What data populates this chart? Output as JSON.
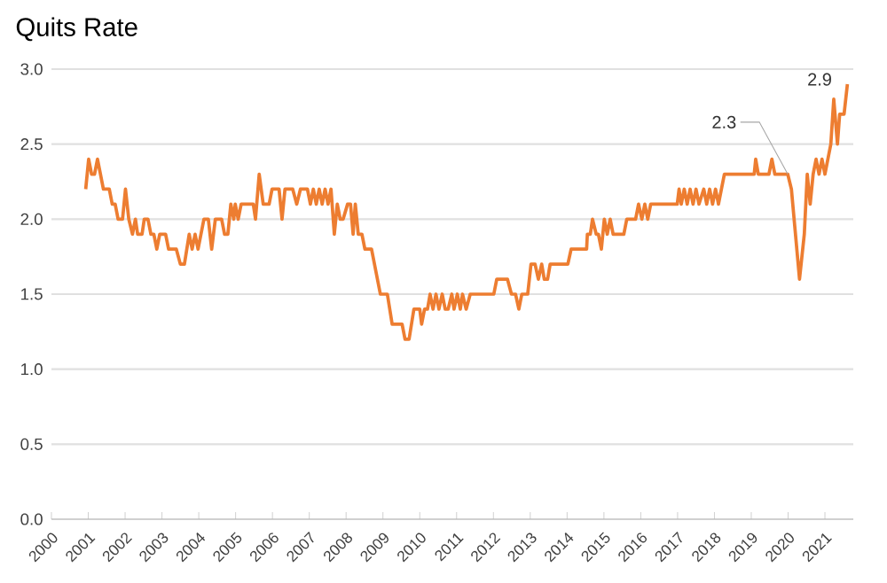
{
  "chart_data": {
    "type": "line",
    "title": "Quits Rate",
    "x": [
      2000.93,
      2001.01,
      2001.09,
      2001.17,
      2001.25,
      2001.41,
      2001.57,
      2001.65,
      2001.73,
      2001.81,
      2001.93,
      2002.01,
      2002.1,
      2002.2,
      2002.28,
      2002.34,
      2002.46,
      2002.52,
      2002.62,
      2002.7,
      2002.78,
      2002.86,
      2002.94,
      2003.1,
      2003.18,
      2003.39,
      2003.5,
      2003.61,
      2003.74,
      2003.82,
      2003.9,
      2003.98,
      2004.14,
      2004.26,
      2004.35,
      2004.45,
      2004.62,
      2004.7,
      2004.79,
      2004.87,
      2004.95,
      2004.99,
      2005.07,
      2005.15,
      2005.48,
      2005.54,
      2005.64,
      2005.75,
      2005.91,
      2005.99,
      2006.18,
      2006.26,
      2006.34,
      2006.55,
      2006.66,
      2006.76,
      2006.79,
      2006.95,
      2007.03,
      2007.11,
      2007.19,
      2007.27,
      2007.35,
      2007.43,
      2007.51,
      2007.59,
      2007.68,
      2007.76,
      2007.84,
      2007.92,
      2008.04,
      2008.12,
      2008.19,
      2008.25,
      2008.33,
      2008.43,
      2008.51,
      2008.69,
      2008.93,
      2009.12,
      2009.25,
      2009.52,
      2009.6,
      2009.71,
      2009.84,
      2010.0,
      2010.05,
      2010.13,
      2010.21,
      2010.28,
      2010.36,
      2010.44,
      2010.52,
      2010.61,
      2010.69,
      2010.77,
      2010.87,
      2010.93,
      2011.02,
      2011.1,
      2011.16,
      2011.26,
      2011.37,
      2012.01,
      2012.09,
      2012.38,
      2012.49,
      2012.6,
      2012.69,
      2012.77,
      2012.93,
      2013.02,
      2013.13,
      2013.22,
      2013.31,
      2013.38,
      2013.47,
      2013.54,
      2014.02,
      2014.11,
      2014.53,
      2014.55,
      2014.63,
      2014.69,
      2014.79,
      2014.85,
      2014.93,
      2015.01,
      2015.09,
      2015.17,
      2015.25,
      2015.54,
      2015.62,
      2015.86,
      2015.94,
      2016.03,
      2016.11,
      2016.19,
      2016.27,
      2016.99,
      2017.04,
      2017.1,
      2017.18,
      2017.26,
      2017.34,
      2017.42,
      2017.5,
      2017.58,
      2017.71,
      2017.79,
      2017.87,
      2017.95,
      2018.03,
      2018.11,
      2018.19,
      2018.27,
      2019.08,
      2019.12,
      2019.19,
      2019.48,
      2019.56,
      2019.64,
      2019.99,
      2020.09,
      2020.2,
      2020.31,
      2020.44,
      2020.52,
      2020.6,
      2020.68,
      2020.76,
      2020.84,
      2020.92,
      2021.0,
      2021.08,
      2021.16,
      2021.24,
      2021.34,
      2021.4,
      2021.52,
      2021.61
    ],
    "values": [
      2.2,
      2.4,
      2.3,
      2.3,
      2.4,
      2.2,
      2.2,
      2.1,
      2.1,
      2.0,
      2.0,
      2.2,
      2.0,
      1.9,
      2.0,
      1.9,
      1.9,
      2.0,
      2.0,
      1.9,
      1.9,
      1.8,
      1.9,
      1.9,
      1.8,
      1.8,
      1.7,
      1.7,
      1.9,
      1.8,
      1.9,
      1.8,
      2.0,
      2.0,
      1.8,
      2.0,
      2.0,
      1.9,
      1.9,
      2.1,
      2.0,
      2.1,
      2.0,
      2.1,
      2.1,
      2.0,
      2.3,
      2.1,
      2.1,
      2.2,
      2.2,
      2.0,
      2.2,
      2.2,
      2.1,
      2.2,
      2.2,
      2.2,
      2.1,
      2.2,
      2.1,
      2.2,
      2.1,
      2.2,
      2.1,
      2.2,
      1.9,
      2.1,
      2.0,
      2.0,
      2.1,
      2.1,
      1.9,
      2.1,
      1.9,
      1.9,
      1.8,
      1.8,
      1.5,
      1.5,
      1.3,
      1.3,
      1.2,
      1.2,
      1.4,
      1.4,
      1.3,
      1.4,
      1.4,
      1.5,
      1.4,
      1.5,
      1.4,
      1.5,
      1.4,
      1.4,
      1.5,
      1.4,
      1.5,
      1.4,
      1.5,
      1.4,
      1.5,
      1.5,
      1.6,
      1.6,
      1.5,
      1.5,
      1.4,
      1.5,
      1.5,
      1.7,
      1.7,
      1.6,
      1.7,
      1.6,
      1.6,
      1.7,
      1.7,
      1.8,
      1.8,
      1.9,
      1.9,
      2.0,
      1.9,
      1.9,
      1.8,
      2.0,
      1.9,
      2.0,
      1.9,
      1.9,
      2.0,
      2.0,
      2.1,
      2.0,
      2.1,
      2.0,
      2.1,
      2.1,
      2.2,
      2.1,
      2.2,
      2.1,
      2.2,
      2.1,
      2.2,
      2.1,
      2.2,
      2.1,
      2.2,
      2.1,
      2.2,
      2.1,
      2.2,
      2.3,
      2.3,
      2.4,
      2.3,
      2.3,
      2.4,
      2.3,
      2.3,
      2.2,
      1.9,
      1.6,
      1.9,
      2.3,
      2.1,
      2.3,
      2.4,
      2.3,
      2.4,
      2.3,
      2.4,
      2.5,
      2.8,
      2.5,
      2.7,
      2.7,
      2.9
    ],
    "color": "#ed7d31",
    "xlim": [
      2000,
      2021.77
    ],
    "xticks": [
      2000,
      2001,
      2002,
      2003,
      2004,
      2005,
      2006,
      2007,
      2008,
      2009,
      2010,
      2011,
      2012,
      2013,
      2014,
      2015,
      2016,
      2017,
      2018,
      2019,
      2020,
      2021
    ],
    "ylim": [
      0,
      3.0
    ],
    "yticks": [
      {
        "value": 0,
        "label": "0.0"
      },
      {
        "value": 0.5,
        "label": "0.5"
      },
      {
        "value": 1.0,
        "label": "1.0"
      },
      {
        "value": 1.5,
        "label": "1.5"
      },
      {
        "value": 2.0,
        "label": "2.0"
      },
      {
        "value": 2.5,
        "label": "2.5"
      },
      {
        "value": 3.0,
        "label": "3.0"
      }
    ],
    "grid": "y",
    "line_style": "solid",
    "annotations": [
      {
        "text": "2.3",
        "x": 2019.99,
        "y": 2.3
      },
      {
        "text": "2.9",
        "x": 2021.61,
        "y": 2.9
      }
    ]
  }
}
